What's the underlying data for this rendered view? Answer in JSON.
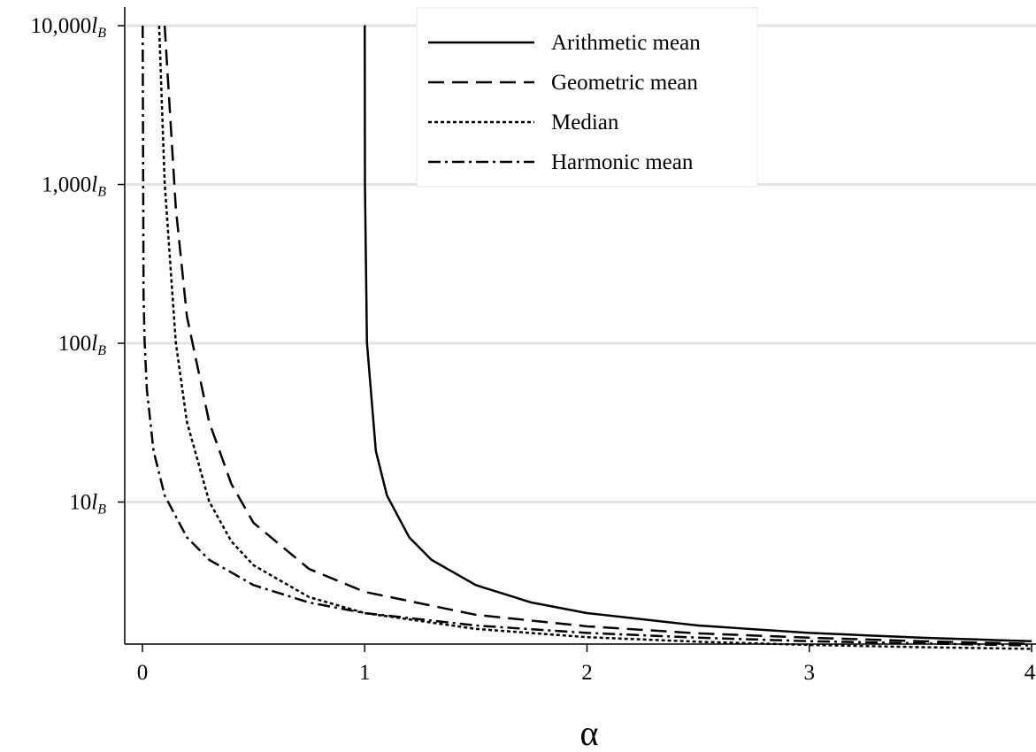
{
  "chart_data": {
    "type": "line",
    "xlabel": "α",
    "ylabel": "",
    "xlim": [
      0,
      4
    ],
    "ylim_log10": [
      0.014,
      4.0
    ],
    "y_scale": "log",
    "grid": "horizontal",
    "x_ticks": [
      {
        "value": 0,
        "label": "0"
      },
      {
        "value": 1,
        "label": "1"
      },
      {
        "value": 2,
        "label": "2"
      },
      {
        "value": 3,
        "label": "3"
      },
      {
        "value": 4,
        "label": "4"
      }
    ],
    "y_ticks": [
      {
        "value": 10000,
        "num": "10,000",
        "var": "l",
        "sub": "B"
      },
      {
        "value": 1000,
        "num": "1,000",
        "var": "l",
        "sub": "B"
      },
      {
        "value": 100,
        "num": "100",
        "var": "l",
        "sub": "B"
      },
      {
        "value": 10,
        "num": "10",
        "var": "l",
        "sub": "B"
      }
    ],
    "legend": {
      "position": "top-right"
    },
    "series": [
      {
        "name": "Arithmetic mean",
        "style": "solid",
        "x": [
          1.0,
          1.0001,
          1.001,
          1.01,
          1.05,
          1.1,
          1.2,
          1.3,
          1.5,
          1.75,
          2.0,
          2.5,
          3.0,
          3.5,
          4.0
        ],
        "y": [
          10000,
          10000,
          1001,
          101,
          21,
          11,
          6.0,
          4.33,
          3.0,
          2.33,
          2.0,
          1.67,
          1.5,
          1.4,
          1.33
        ]
      },
      {
        "name": "Geometric mean",
        "style": "dashed",
        "x": [
          0.1,
          0.15,
          0.2,
          0.3,
          0.4,
          0.5,
          0.75,
          1.0,
          1.5,
          2.0,
          2.5,
          3.0,
          3.5,
          4.0
        ],
        "y": [
          10000,
          716,
          148,
          32,
          13,
          7.39,
          3.79,
          2.72,
          1.95,
          1.65,
          1.49,
          1.4,
          1.33,
          1.28
        ]
      },
      {
        "name": "Median",
        "style": "dotted",
        "x": [
          0.075,
          0.1,
          0.15,
          0.2,
          0.3,
          0.4,
          0.5,
          0.75,
          1.0,
          1.5,
          2.0,
          2.5,
          3.0,
          3.5,
          4.0
        ],
        "y": [
          10000,
          1024,
          101,
          32,
          10.1,
          5.66,
          4.0,
          2.52,
          2.0,
          1.59,
          1.41,
          1.32,
          1.26,
          1.22,
          1.19
        ]
      },
      {
        "name": "Harmonic mean",
        "style": "dash-dot",
        "x": [
          0.001,
          0.005,
          0.01,
          0.02,
          0.05,
          0.1,
          0.2,
          0.3,
          0.5,
          0.75,
          1.0,
          1.5,
          2.0,
          2.5,
          3.0,
          3.5,
          4.0
        ],
        "y": [
          10000,
          200,
          101,
          51,
          21,
          11,
          6.0,
          4.33,
          3.0,
          2.33,
          2.0,
          1.67,
          1.5,
          1.4,
          1.33,
          1.29,
          1.25
        ]
      }
    ]
  }
}
